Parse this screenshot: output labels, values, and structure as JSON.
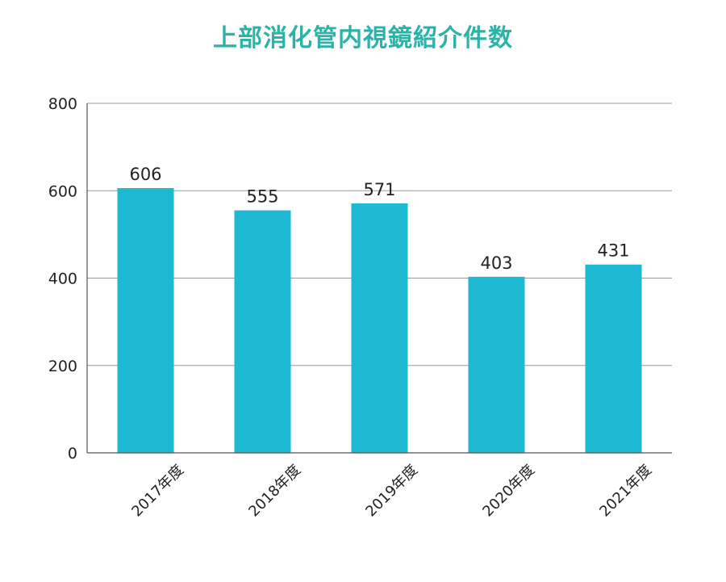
{
  "chart_data": {
    "type": "bar",
    "title": "上部消化管内視鏡紹介件数",
    "categories": [
      "2017年度",
      "2018年度",
      "2019年度",
      "2020年度",
      "2021年度"
    ],
    "values": [
      606,
      555,
      571,
      403,
      431
    ],
    "data_labels": [
      "606",
      "555",
      "571",
      "403",
      "431"
    ],
    "xlabel": "",
    "ylabel": "",
    "ylim": [
      0,
      800
    ],
    "yticks": [
      0,
      200,
      400,
      600,
      800
    ],
    "grid": true,
    "colors": {
      "bar": "#1db8d2",
      "title": "#2bb3a8",
      "grid": "#999999",
      "axis": "#555555"
    }
  }
}
